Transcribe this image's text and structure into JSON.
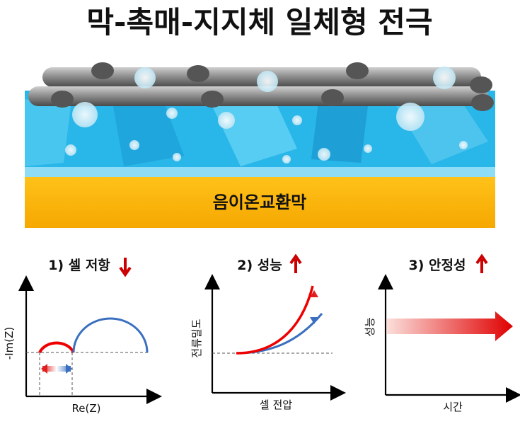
{
  "header": {
    "title": "막-촉매-지지체 일체형 전극"
  },
  "illustration": {
    "membrane_label": "음이온교환막"
  },
  "panels": [
    {
      "title": "1) 셀 저항",
      "y_label": "-Im(Z)",
      "x_label": "Re(Z)"
    },
    {
      "title": "2) 성능",
      "y_label": "전류밀도",
      "x_label": "셀 전압"
    },
    {
      "title": "3) 안정성",
      "y_label": "성능",
      "x_label": "시간"
    }
  ]
}
